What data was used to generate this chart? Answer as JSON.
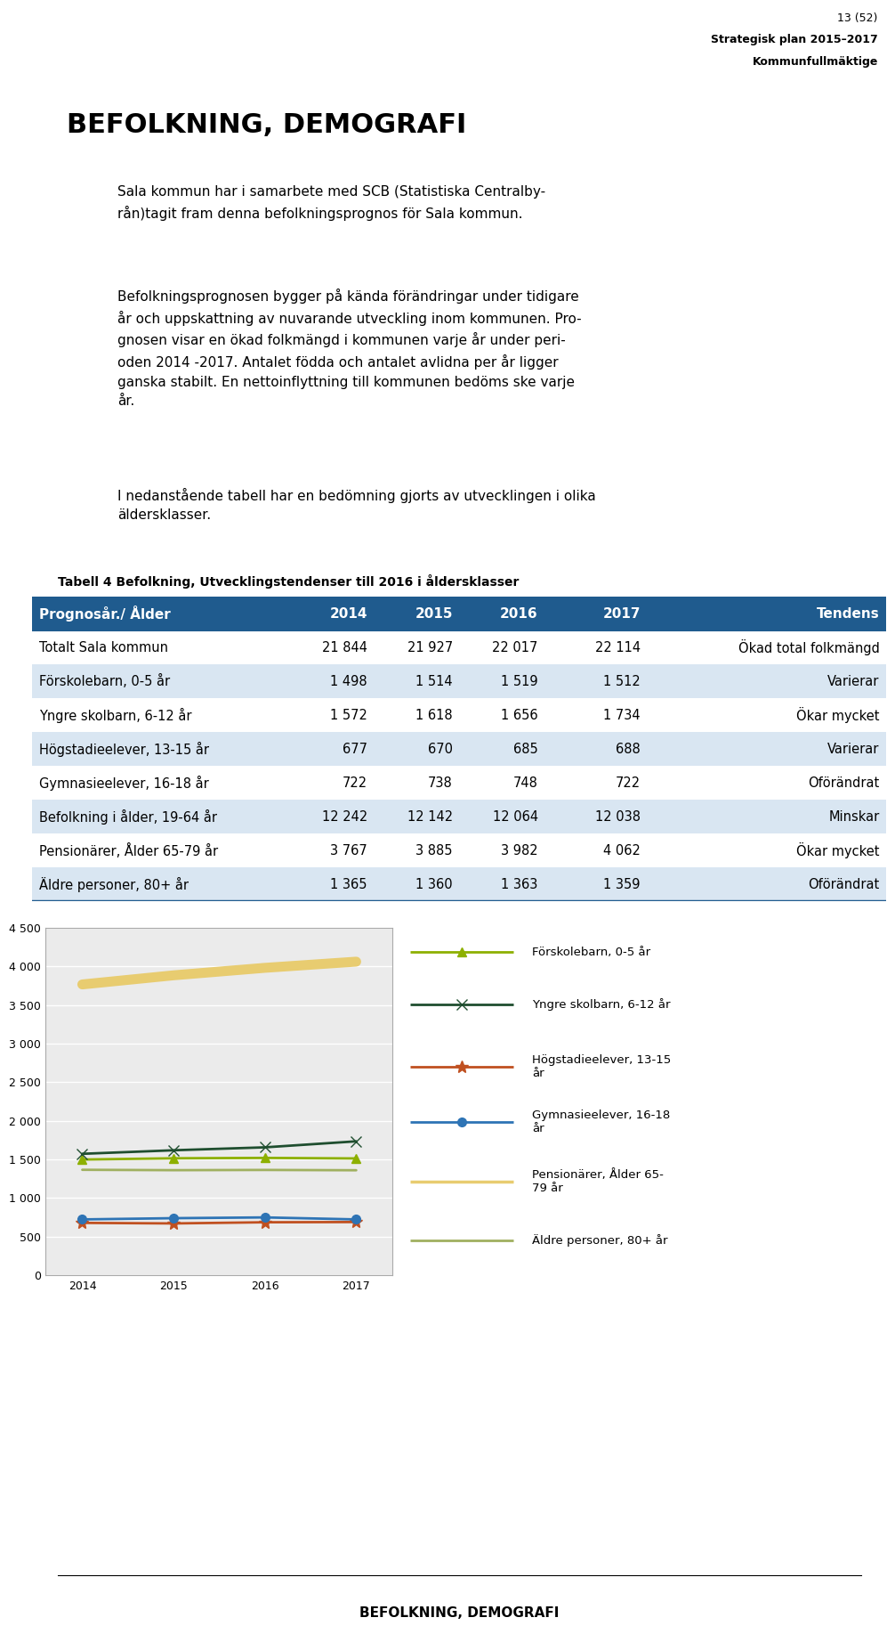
{
  "page_header_right": [
    "13 (52)",
    "Strategisk plan 2015–2017",
    "Kommunfullmäktige"
  ],
  "main_title": "BEFOLKNING, DEMOGRAFI",
  "para1_line1": "Sala kommun har i samarbete med SCB (Statistiska Centralby-",
  "para1_line2": "rån)tagit fram denna befolkningsprognos för Sala kommun.",
  "para2_line1": "Befolkningsprognosen bygger på kända förändringar under tidigare",
  "para2_line2": "år och uppskattning av nuvarande utveckling inom kommunen. Pro-",
  "para2_line3": "gnosen visar en ökad folkmängd i kommunen varje år under peri-",
  "para2_line4": "oden 2014 -2017. Antalet födda och antalet avlidna per år ligger",
  "para2_line5": "ganska stabilt. En nettoinflyttning till kommunen bedöms ske varje",
  "para2_line6": "år.",
  "para3_line1": "I nedanstående tabell har en bedömning gjorts av utvecklingen i olika",
  "para3_line2": "äldersklasser.",
  "table_caption": "Tabell 4 Befolkning, Utvecklingstendenser till 2016 i åldersklasser",
  "table_headers": [
    "Prognosår./ Ålder",
    "2014",
    "2015",
    "2016",
    "2017",
    "Tendens"
  ],
  "table_rows": [
    [
      "Totalt Sala kommun",
      "21 844",
      "21 927",
      "22 017",
      "22 114",
      "Ökad total folkmängd"
    ],
    [
      "Förskolebarn, 0-5 år",
      "1 498",
      "1 514",
      "1 519",
      "1 512",
      "Varierar"
    ],
    [
      "Yngre skolbarn, 6-12 år",
      "1 572",
      "1 618",
      "1 656",
      "1 734",
      "Ökar mycket"
    ],
    [
      "Högstadieelever, 13-15 år",
      "677",
      "670",
      "685",
      "688",
      "Varierar"
    ],
    [
      "Gymnasieelever, 16-18 år",
      "722",
      "738",
      "748",
      "722",
      "Oförändrat"
    ],
    [
      "Befolkning i ålder, 19-64 år",
      "12 242",
      "12 142",
      "12 064",
      "12 038",
      "Minskar"
    ],
    [
      "Pensionärer, Ålder 65-79 år",
      "3 767",
      "3 885",
      "3 982",
      "4 062",
      "Ökar mycket"
    ],
    [
      "Äldre personer, 80+ år",
      "1 365",
      "1 360",
      "1 363",
      "1 359",
      "Oförändrat"
    ]
  ],
  "chart_years": [
    2014,
    2015,
    2016,
    2017
  ],
  "chart_series": [
    {
      "label": "Förskolebarn, 0-5 år",
      "values": [
        1498,
        1514,
        1519,
        1512
      ],
      "color": "#8DB000",
      "marker": "^",
      "linewidth": 2.0,
      "markersize": 7
    },
    {
      "label": "Yngre skolbarn, 6-12 år",
      "values": [
        1572,
        1618,
        1656,
        1734
      ],
      "color": "#1F4E2F",
      "marker": "x",
      "linewidth": 2.0,
      "markersize": 8
    },
    {
      "label": "Högstadieelever, 13-15\når",
      "values": [
        677,
        670,
        685,
        688
      ],
      "color": "#C05020",
      "marker": "*",
      "linewidth": 2.0,
      "markersize": 10
    },
    {
      "label": "Gymnasieelever, 16-18\når",
      "values": [
        722,
        738,
        748,
        722
      ],
      "color": "#2E74B5",
      "marker": "o",
      "linewidth": 2.0,
      "markersize": 7
    },
    {
      "label": "Pensionärer, Ålder 65-\n79 år",
      "values": [
        3767,
        3885,
        3982,
        4062
      ],
      "color": "#E8CC70",
      "marker": null,
      "linewidth": 8,
      "markersize": 0
    },
    {
      "label": "Äldre personer, 80+ år",
      "values": [
        1365,
        1360,
        1363,
        1359
      ],
      "color": "#A0B060",
      "marker": null,
      "linewidth": 2.0,
      "markersize": 0
    }
  ],
  "chart_ylim": [
    0,
    4500
  ],
  "chart_yticks": [
    0,
    500,
    1000,
    1500,
    2000,
    2500,
    3000,
    3500,
    4000,
    4500
  ],
  "footer_text": "BEFOLKNING, DEMOGRAFI",
  "bg_color": "#ffffff",
  "table_header_bg": "#1F5B8E",
  "table_header_fg": "#ffffff",
  "table_alt_bg": "#D9E6F2",
  "table_row_bg": "#ffffff",
  "chart_bg": "#EBEBEB",
  "chart_border": "#AAAAAA"
}
